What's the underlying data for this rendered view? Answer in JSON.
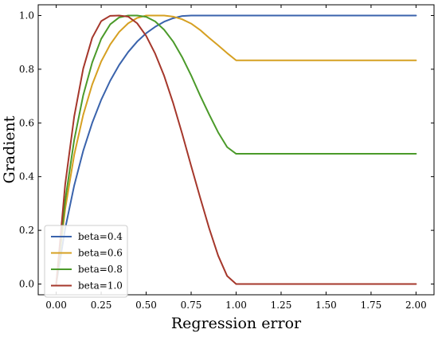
{
  "chart_data": {
    "type": "line",
    "title": "",
    "xlabel": "Regression error",
    "ylabel": "Gradient",
    "xlim": [
      -0.1,
      2.1
    ],
    "ylim": [
      -0.04,
      1.04
    ],
    "xticks": [
      0.0,
      0.25,
      0.5,
      0.75,
      1.0,
      1.25,
      1.5,
      1.75,
      2.0
    ],
    "xtick_labels": [
      "0.00",
      "0.25",
      "0.50",
      "0.75",
      "1.00",
      "1.25",
      "1.50",
      "1.75",
      "2.00"
    ],
    "yticks": [
      0.0,
      0.2,
      0.4,
      0.6,
      0.8,
      1.0
    ],
    "ytick_labels": [
      "0.0",
      "0.2",
      "0.4",
      "0.6",
      "0.8",
      "1.0"
    ],
    "grid": false,
    "legend": {
      "placement": "lower-left"
    },
    "series": [
      {
        "name": "beta=0.4",
        "color": "#3a63ac",
        "x": [
          0,
          0.05,
          0.1,
          0.15,
          0.2,
          0.25,
          0.3,
          0.35,
          0.4,
          0.45,
          0.5,
          0.55,
          0.6,
          0.65,
          0.7,
          0.75,
          0.8,
          0.85,
          0.9,
          0.95,
          1.0,
          1.25,
          1.5,
          1.75,
          2.0
        ],
        "values": [
          0,
          0.207,
          0.367,
          0.496,
          0.6,
          0.686,
          0.757,
          0.816,
          0.864,
          0.903,
          0.934,
          0.958,
          0.977,
          0.99,
          0.998,
          1.0,
          1.0,
          1.0,
          1.0,
          1.0,
          1.0,
          1.0,
          1.0,
          1.0,
          1.0
        ]
      },
      {
        "name": "beta=0.6",
        "color": "#d6a022",
        "x": [
          0,
          0.05,
          0.1,
          0.15,
          0.2,
          0.25,
          0.3,
          0.35,
          0.4,
          0.45,
          0.5,
          0.55,
          0.6,
          0.65,
          0.7,
          0.75,
          0.8,
          0.85,
          0.9,
          0.95,
          1.0,
          1.25,
          1.5,
          1.75,
          2.0
        ],
        "values": [
          0,
          0.28,
          0.481,
          0.63,
          0.743,
          0.829,
          0.892,
          0.939,
          0.971,
          0.991,
          1.0,
          1.0,
          1.0,
          0.996,
          0.986,
          0.97,
          0.946,
          0.917,
          0.889,
          0.86,
          0.833,
          0.833,
          0.833,
          0.833,
          0.833
        ]
      },
      {
        "name": "beta=0.8",
        "color": "#4b9a2a",
        "x": [
          0,
          0.05,
          0.1,
          0.15,
          0.2,
          0.25,
          0.3,
          0.35,
          0.4,
          0.45,
          0.5,
          0.55,
          0.6,
          0.65,
          0.7,
          0.75,
          0.8,
          0.85,
          0.9,
          0.95,
          1.0,
          1.25,
          1.5,
          1.75,
          2.0
        ],
        "values": [
          0,
          0.312,
          0.537,
          0.703,
          0.825,
          0.913,
          0.967,
          0.993,
          1.0,
          1.0,
          0.995,
          0.978,
          0.947,
          0.903,
          0.845,
          0.777,
          0.702,
          0.632,
          0.565,
          0.51,
          0.485,
          0.485,
          0.485,
          0.485,
          0.485
        ]
      },
      {
        "name": "beta=1.0",
        "color": "#a5372b",
        "x": [
          0,
          0.05,
          0.1,
          0.15,
          0.2,
          0.25,
          0.3,
          0.35,
          0.4,
          0.45,
          0.5,
          0.55,
          0.6,
          0.65,
          0.7,
          0.75,
          0.8,
          0.85,
          0.9,
          0.95,
          1.0,
          1.25,
          1.5,
          1.75,
          2.0
        ],
        "values": [
          0,
          0.372,
          0.624,
          0.802,
          0.917,
          0.979,
          0.999,
          1.0,
          0.996,
          0.971,
          0.924,
          0.858,
          0.775,
          0.674,
          0.56,
          0.44,
          0.322,
          0.208,
          0.106,
          0.03,
          0.0,
          0.0,
          0.0,
          0.0,
          0.0
        ]
      }
    ]
  }
}
